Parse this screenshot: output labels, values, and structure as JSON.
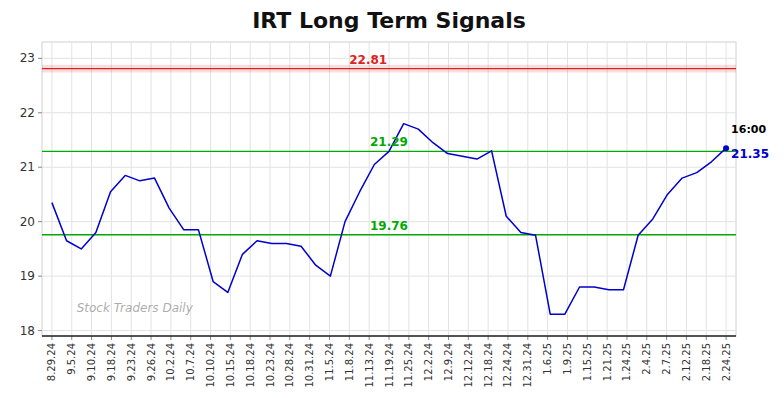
{
  "chart_data": {
    "type": "line",
    "title": "IRT Long Term Signals",
    "color": "#0000cc",
    "grid": true,
    "xlim": [
      -0.5,
      34.5
    ],
    "xticks": [
      {
        "value": 0,
        "label": "8.29.24"
      },
      {
        "value": 1,
        "label": "9.5.24"
      },
      {
        "value": 2,
        "label": "9.10.24"
      },
      {
        "value": 3,
        "label": "9.18.24"
      },
      {
        "value": 4,
        "label": "9.23.24"
      },
      {
        "value": 5,
        "label": "9.26.24"
      },
      {
        "value": 6,
        "label": "10.2.24"
      },
      {
        "value": 7,
        "label": "10.7.24"
      },
      {
        "value": 8,
        "label": "10.10.24"
      },
      {
        "value": 9,
        "label": "10.15.24"
      },
      {
        "value": 10,
        "label": "10.18.24"
      },
      {
        "value": 11,
        "label": "10.23.24"
      },
      {
        "value": 12,
        "label": "10.28.24"
      },
      {
        "value": 13,
        "label": "10.31.24"
      },
      {
        "value": 14,
        "label": "11.5.24"
      },
      {
        "value": 15,
        "label": "11.8.24"
      },
      {
        "value": 16,
        "label": "11.13.24"
      },
      {
        "value": 17,
        "label": "11.19.24"
      },
      {
        "value": 18,
        "label": "11.25.24"
      },
      {
        "value": 19,
        "label": "12.2.24"
      },
      {
        "value": 20,
        "label": "12.9.24"
      },
      {
        "value": 21,
        "label": "12.12.24"
      },
      {
        "value": 22,
        "label": "12.18.24"
      },
      {
        "value": 23,
        "label": "12.24.24"
      },
      {
        "value": 24,
        "label": "12.31.24"
      },
      {
        "value": 25,
        "label": "1.6.25"
      },
      {
        "value": 26,
        "label": "1.9.25"
      },
      {
        "value": 27,
        "label": "1.15.25"
      },
      {
        "value": 28,
        "label": "1.21.25"
      },
      {
        "value": 29,
        "label": "1.24.25"
      },
      {
        "value": 30,
        "label": "2.4.25"
      },
      {
        "value": 31,
        "label": "2.7.25"
      },
      {
        "value": 32,
        "label": "2.12.25"
      },
      {
        "value": 33,
        "label": "2.18.25"
      },
      {
        "value": 34,
        "label": "2.24.25"
      }
    ],
    "x": [
      0,
      0.7391,
      1.4783,
      2.2174,
      2.9565,
      3.6957,
      4.4348,
      5.1739,
      5.913,
      6.6522,
      7.3913,
      8.1304,
      8.8696,
      9.6087,
      10.3478,
      11.087,
      11.8261,
      12.5652,
      13.3043,
      14.0435,
      14.7826,
      15.5217,
      16.2609,
      17,
      17.7391,
      18.4783,
      19.2174,
      19.9565,
      20.6957,
      21.4348,
      22.1739,
      22.913,
      23.6522,
      24.3913,
      25.1304,
      25.8696,
      26.6087,
      27.3478,
      28.087,
      28.8261,
      29.5652,
      30.3043,
      31.0435,
      31.7826,
      32.5217,
      33.2609,
      34
    ],
    "values": [
      20.35,
      19.65,
      19.5,
      19.8,
      20.55,
      20.85,
      20.75,
      20.8,
      20.25,
      19.85,
      19.85,
      18.9,
      18.7,
      19.4,
      19.65,
      19.6,
      19.6,
      19.55,
      19.2,
      19.0,
      20.0,
      20.55,
      21.05,
      21.29,
      21.8,
      21.7,
      21.45,
      21.25,
      21.2,
      21.15,
      21.3,
      20.1,
      19.8,
      19.75,
      18.3,
      18.3,
      18.8,
      18.8,
      18.75,
      18.75,
      19.75,
      20.05,
      20.5,
      20.8,
      20.9,
      21.1,
      21.35
    ],
    "ylim": [
      17.9,
      23.3
    ],
    "yticks": [
      18,
      19,
      20,
      21,
      22,
      23
    ],
    "reference_lines": [
      {
        "value": 22.81,
        "label": "22.81",
        "color": "#dd2222"
      },
      {
        "value": 21.29,
        "label": "21.29",
        "color": "#00aa00"
      },
      {
        "value": 19.76,
        "label": "19.76",
        "color": "#00aa00"
      }
    ],
    "last_point": {
      "value": 21.35,
      "label": "21.35",
      "time": "16:00"
    },
    "watermark": "Stock Traders Daily"
  }
}
